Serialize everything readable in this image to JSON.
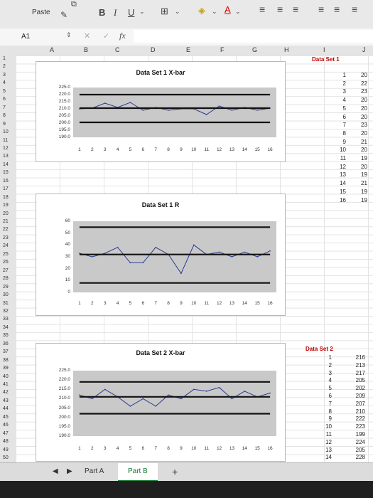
{
  "ribbon": {
    "paste_label": "Paste",
    "bold": "B",
    "italic": "I",
    "underline": "U"
  },
  "formula_bar": {
    "name_box": "A1",
    "fx": "fx"
  },
  "columns": [
    "A",
    "B",
    "C",
    "D",
    "E",
    "F",
    "G",
    "H",
    "I",
    "J"
  ],
  "rows": [
    "1",
    "2",
    "3",
    "4",
    "5",
    "6",
    "7",
    "8",
    "9",
    "10",
    "11",
    "12",
    "13",
    "14",
    "15",
    "16",
    "17",
    "18",
    "19",
    "20",
    "21",
    "22",
    "23",
    "24",
    "25",
    "26",
    "27",
    "28",
    "29",
    "30",
    "31",
    "32",
    "33",
    "34",
    "35",
    "36",
    "37",
    "38",
    "39",
    "40",
    "41",
    "42",
    "43",
    "44",
    "45",
    "46",
    "47",
    "48",
    "49",
    "50"
  ],
  "sheet": {
    "data_set1_header": "Data Set 1",
    "data_set2_header": "Data Set 2",
    "set1_index": [
      "1",
      "2",
      "3",
      "4",
      "5",
      "6",
      "7",
      "8",
      "9",
      "10",
      "11",
      "12",
      "13",
      "14",
      "15",
      "16"
    ],
    "set1_values_partial": [
      "20",
      "22",
      "23",
      "20",
      "20",
      "20",
      "23",
      "20",
      "21",
      "20",
      "19",
      "20",
      "19",
      "21",
      "19",
      "19"
    ],
    "set2_index": [
      "1",
      "2",
      "3",
      "4",
      "5",
      "6",
      "7",
      "8",
      "9",
      "10",
      "11",
      "12",
      "13",
      "14"
    ],
    "set2_values": [
      "216",
      "213",
      "217",
      "205",
      "202",
      "209",
      "207",
      "210",
      "222",
      "223",
      "199",
      "224",
      "205",
      "228"
    ]
  },
  "tabs": {
    "part_a": "Part A",
    "part_b": "Part B",
    "add": "+"
  },
  "chart_data": [
    {
      "type": "line",
      "title": "Data Set 1  X-bar",
      "x": [
        1,
        2,
        3,
        4,
        5,
        6,
        7,
        8,
        9,
        10,
        11,
        12,
        13,
        14,
        15,
        16
      ],
      "ylim": [
        190,
        225
      ],
      "yticks": [
        "225.0",
        "220.0",
        "215.0",
        "210.0",
        "205.0",
        "200.0",
        "195.0",
        "190.0"
      ],
      "series": [
        {
          "values": [
            210,
            210.5,
            214,
            211,
            214.5,
            209,
            211,
            209,
            210,
            210,
            206,
            212,
            209,
            211,
            209,
            210.5
          ]
        },
        {
          "values": [
            220,
            220,
            220,
            220,
            220,
            220,
            220,
            220,
            220,
            220,
            220,
            220,
            220,
            220,
            220,
            220
          ]
        },
        {
          "values": [
            210.5,
            210.5,
            210.5,
            210.5,
            210.5,
            210.5,
            210.5,
            210.5,
            210.5,
            210.5,
            210.5,
            210.5,
            210.5,
            210.5,
            210.5,
            210.5
          ]
        },
        {
          "values": [
            200.5,
            200.5,
            200.5,
            200.5,
            200.5,
            200.5,
            200.5,
            200.5,
            200.5,
            200.5,
            200.5,
            200.5,
            200.5,
            200.5,
            200.5,
            200.5
          ]
        }
      ]
    },
    {
      "type": "line",
      "title": "Data Set 1  R",
      "x": [
        1,
        2,
        3,
        4,
        5,
        6,
        7,
        8,
        9,
        10,
        11,
        12,
        13,
        14,
        15,
        16
      ],
      "ylim": [
        0,
        60
      ],
      "yticks": [
        "60",
        "50",
        "40",
        "30",
        "20",
        "10",
        "0"
      ],
      "series": [
        {
          "values": [
            33,
            30,
            33,
            38,
            25,
            25,
            38,
            32,
            16,
            40,
            32,
            34,
            30,
            34,
            30,
            35
          ]
        },
        {
          "values": [
            55,
            55,
            55,
            55,
            55,
            55,
            55,
            55,
            55,
            55,
            55,
            55,
            55,
            55,
            55,
            55
          ]
        },
        {
          "values": [
            32,
            32,
            32,
            32,
            32,
            32,
            32,
            32,
            32,
            32,
            32,
            32,
            32,
            32,
            32,
            32
          ]
        },
        {
          "values": [
            8,
            8,
            8,
            8,
            8,
            8,
            8,
            8,
            8,
            8,
            8,
            8,
            8,
            8,
            8,
            8
          ]
        }
      ]
    },
    {
      "type": "line",
      "title": "Data Set 2  X-bar",
      "x": [
        1,
        2,
        3,
        4,
        5,
        6,
        7,
        8,
        9,
        10,
        11,
        12,
        13,
        14,
        15,
        16
      ],
      "ylim": [
        190,
        225
      ],
      "yticks": [
        "225.0",
        "220.0",
        "215.0",
        "210.0",
        "205.0",
        "200.0",
        "195.0",
        "190.0"
      ],
      "series": [
        {
          "values": [
            212,
            210,
            215,
            211,
            206,
            210,
            206,
            212,
            210,
            215,
            214,
            216,
            210,
            214,
            211,
            213
          ]
        },
        {
          "values": [
            219,
            219,
            219,
            219,
            219,
            219,
            219,
            219,
            219,
            219,
            219,
            219,
            219,
            219,
            219,
            219
          ]
        },
        {
          "values": [
            211,
            211,
            211,
            211,
            211,
            211,
            211,
            211,
            211,
            211,
            211,
            211,
            211,
            211,
            211,
            211
          ]
        },
        {
          "values": [
            202,
            202,
            202,
            202,
            202,
            202,
            202,
            202,
            202,
            202,
            202,
            202,
            202,
            202,
            202,
            202
          ]
        }
      ]
    }
  ]
}
